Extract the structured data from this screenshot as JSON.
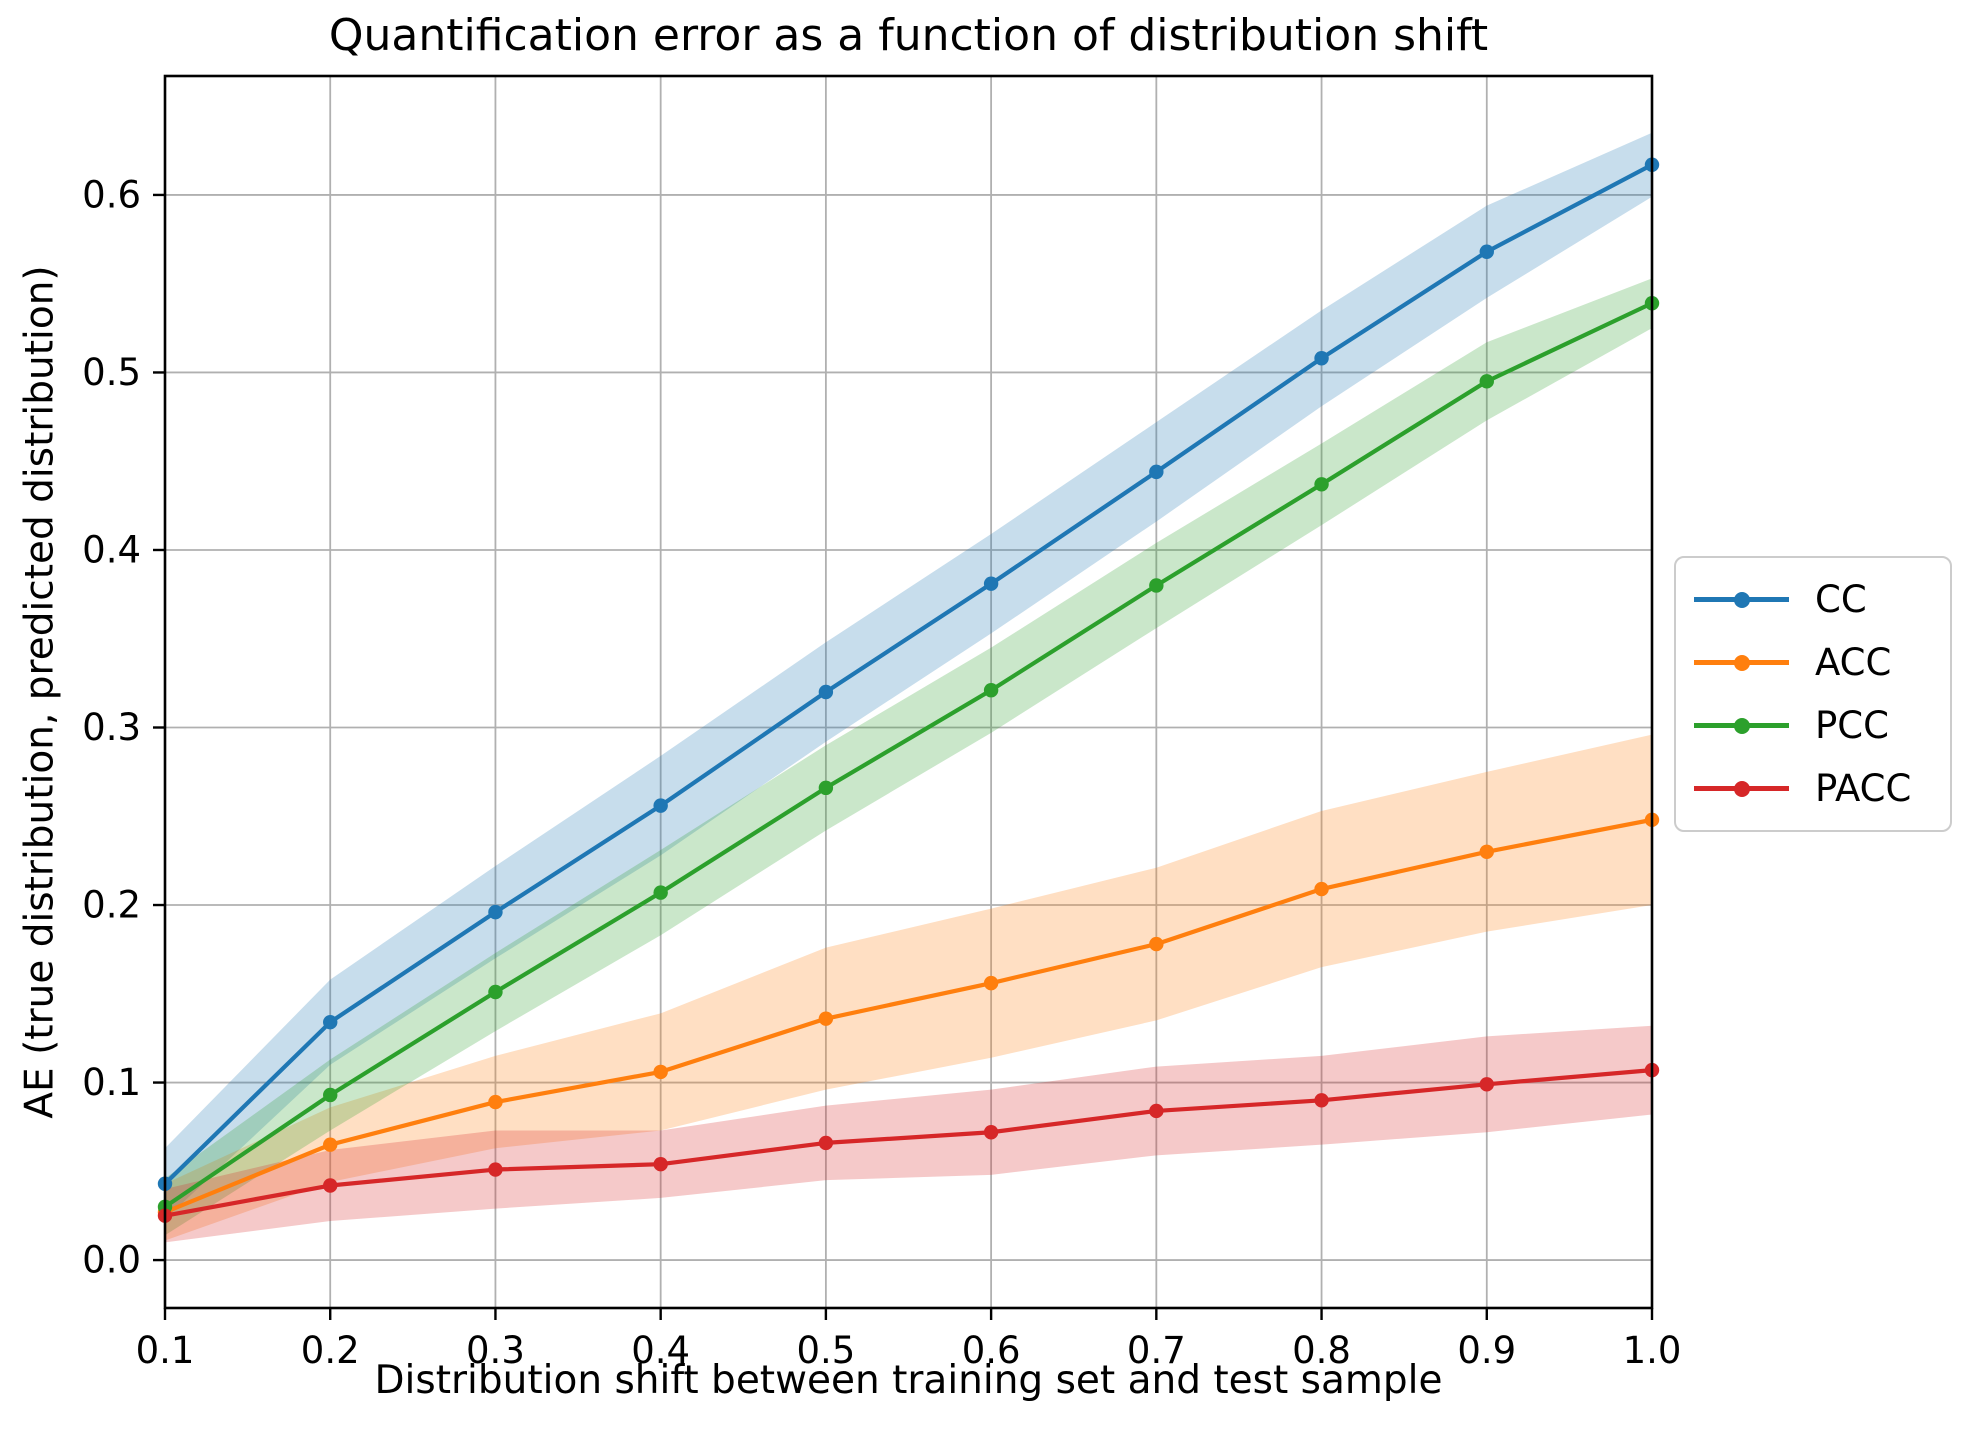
{
  "chart_data": {
    "type": "line",
    "title": "Quantification error as a function of distribution shift",
    "xlabel": "Distribution shift between training set and test sample",
    "ylabel": "AE (true distribution, predicted distribution)",
    "grid": true,
    "legend_position": "center-right-outside",
    "marker": "circle",
    "band_opacity": 0.25,
    "xlim": [
      0.1,
      1.0
    ],
    "ylim": [
      -0.027,
      0.667
    ],
    "x_ticks": [
      0.1,
      0.2,
      0.3,
      0.4,
      0.5,
      0.6,
      0.7,
      0.8,
      0.9,
      1.0
    ],
    "y_ticks": [
      0.0,
      0.1,
      0.2,
      0.3,
      0.4,
      0.5,
      0.6
    ],
    "x": [
      0.1,
      0.2,
      0.3,
      0.4,
      0.5,
      0.6,
      0.7,
      0.8,
      0.9,
      1.0
    ],
    "series": [
      {
        "name": "CC",
        "color": "#1f77b4",
        "values": [
          0.043,
          0.134,
          0.196,
          0.256,
          0.32,
          0.381,
          0.444,
          0.508,
          0.568,
          0.617
        ],
        "band_halfwidth": [
          0.02,
          0.024,
          0.026,
          0.028,
          0.028,
          0.028,
          0.028,
          0.027,
          0.026,
          0.018
        ]
      },
      {
        "name": "ACC",
        "color": "#ff7f0e",
        "values": [
          0.027,
          0.065,
          0.089,
          0.106,
          0.136,
          0.156,
          0.178,
          0.209,
          0.23,
          0.248
        ],
        "band_halfwidth": [
          0.016,
          0.021,
          0.026,
          0.033,
          0.04,
          0.042,
          0.043,
          0.044,
          0.045,
          0.048
        ]
      },
      {
        "name": "PCC",
        "color": "#2ca02c",
        "values": [
          0.03,
          0.093,
          0.151,
          0.207,
          0.266,
          0.321,
          0.38,
          0.437,
          0.495,
          0.539
        ],
        "band_halfwidth": [
          0.016,
          0.02,
          0.022,
          0.024,
          0.024,
          0.024,
          0.024,
          0.023,
          0.022,
          0.014
        ]
      },
      {
        "name": "PACC",
        "color": "#d62728",
        "values": [
          0.025,
          0.042,
          0.051,
          0.054,
          0.066,
          0.072,
          0.084,
          0.09,
          0.099,
          0.107
        ],
        "band_halfwidth": [
          0.015,
          0.02,
          0.022,
          0.019,
          0.021,
          0.024,
          0.025,
          0.025,
          0.027,
          0.025
        ]
      }
    ],
    "style": {
      "grid_color": "#b0b0b0",
      "spine_color": "#000000",
      "tick_color": "#000000",
      "tick_label_color": "#000000"
    }
  }
}
